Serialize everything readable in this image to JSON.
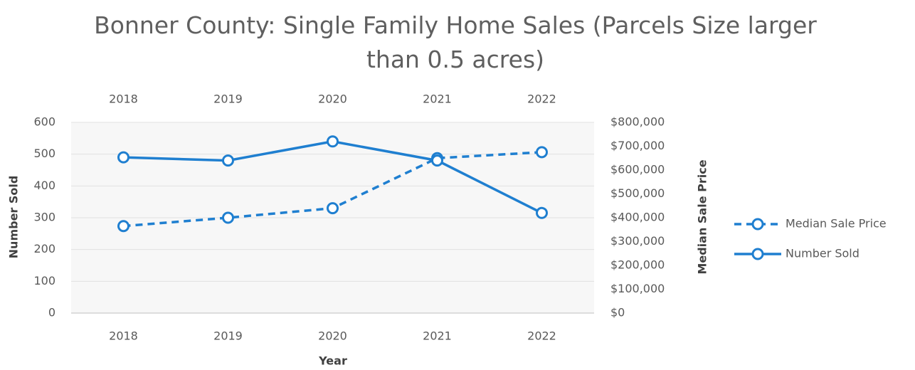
{
  "chart_data": {
    "type": "line",
    "title": "Bonner County: Single Family Home Sales (Parcels Size larger than 0.5 acres)",
    "x_label": "Year",
    "y_label": "Number Sold",
    "y2_label": "Median Sale Price",
    "categories": [
      "2018",
      "2019",
      "2020",
      "2021",
      "2022"
    ],
    "series": [
      {
        "name": "Median Sale Price",
        "color": "#1f7fd0",
        "dashed": true,
        "axis": "y2",
        "values": [
          365000,
          400000,
          440000,
          650000,
          675000
        ]
      },
      {
        "name": "Number Sold",
        "color": "#1f7fd0",
        "dashed": false,
        "axis": "y",
        "values": [
          490,
          480,
          540,
          480,
          315
        ]
      }
    ],
    "ylim": [
      0,
      600
    ],
    "yticks": [
      0,
      100,
      200,
      300,
      400,
      500,
      600
    ],
    "y2lim": [
      0,
      800000
    ],
    "y2ticks": [
      {
        "value": 0,
        "label": "$0"
      },
      {
        "value": 100000,
        "label": "$100,000"
      },
      {
        "value": 200000,
        "label": "$200,000"
      },
      {
        "value": 300000,
        "label": "$300,000"
      },
      {
        "value": 400000,
        "label": "$400,000"
      },
      {
        "value": 500000,
        "label": "$500,000"
      },
      {
        "value": 600000,
        "label": "$600,000"
      },
      {
        "value": 700000,
        "label": "$700,000"
      },
      {
        "value": 800000,
        "label": "$800,000"
      }
    ],
    "grid": true,
    "legend": "right"
  }
}
